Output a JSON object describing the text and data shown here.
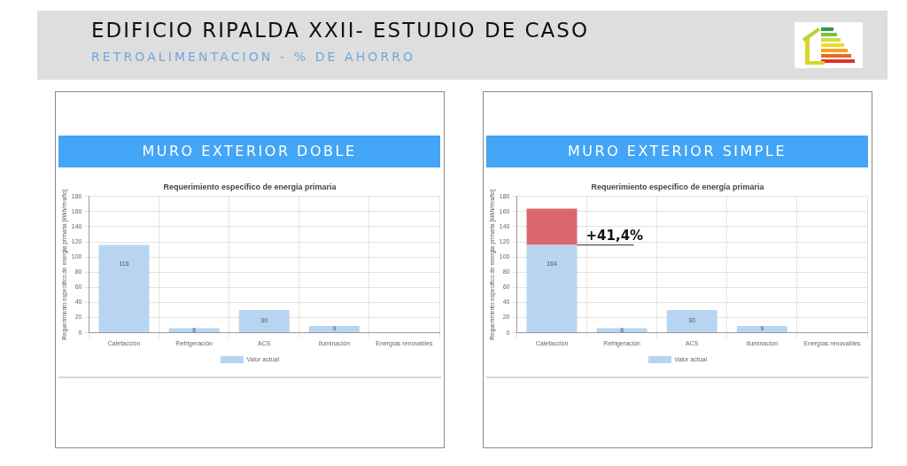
{
  "chart_data": [
    {
      "type": "other",
      "title": "EDIFICIO RIPALDA XXII- ESTUDIO DE CASO",
      "subtitle": "RETROALIMENTACION - % DE AHORRO"
    },
    {
      "type": "bar",
      "title": "MURO EXTERIOR DOBLE",
      "subtitle": "Requerimiento específico de energía primaria",
      "ylabel": "Requerimiento específico de energía primaria [kWh/m²año]",
      "categories": [
        "Calefacción",
        "Refrigeración",
        "ACS",
        "Iluminación",
        "Energías renovables"
      ],
      "series": [
        {
          "name": "Valor actual",
          "color": "#b7d5f1",
          "values": [
            116,
            6,
            30,
            9,
            null
          ]
        }
      ],
      "ylim": [
        0,
        180
      ],
      "yticks": [
        0,
        20,
        40,
        60,
        80,
        100,
        120,
        140,
        160,
        180
      ],
      "grid": true,
      "legend": "bottom",
      "data_labels": true
    },
    {
      "type": "bar",
      "title": "MURO EXTERIOR SIMPLE",
      "subtitle": "Requerimiento específico de energía primaria",
      "ylabel": "Requerimiento específico de energía primaria [kWh/m²año]",
      "categories": [
        "Calefacción",
        "Refrigeración",
        "ACS",
        "Iluminación",
        "Energías renovables"
      ],
      "series": [
        {
          "name": "Valor actual",
          "color": "#b7d5f1",
          "values": [
            116,
            6,
            30,
            9,
            null
          ]
        },
        {
          "color": "#dc6670",
          "values": [
            48,
            null,
            null,
            null,
            null
          ]
        }
      ],
      "stacked": true,
      "totals": [
        "164",
        "6",
        "30",
        "9",
        null
      ],
      "ylim": [
        0,
        180
      ],
      "yticks": [
        0,
        20,
        40,
        60,
        80,
        100,
        120,
        140,
        160,
        180
      ],
      "grid": true,
      "legend": "bottom",
      "annotations": [
        {
          "text": "+41,4%",
          "x": "Calefacción",
          "y": 116
        }
      ]
    }
  ]
}
